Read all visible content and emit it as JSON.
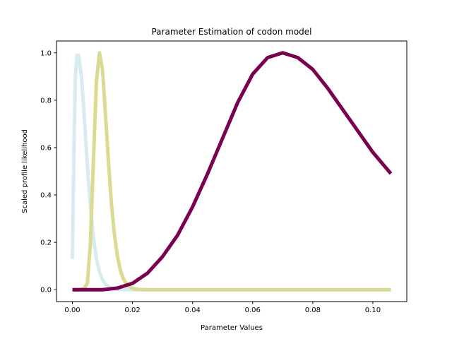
{
  "chart_data": {
    "type": "line",
    "title": "Parameter Estimation of codon model",
    "xlabel": "Parameter Values",
    "ylabel": "Scaled profile likelihood",
    "xlim": [
      -0.0053,
      0.1113
    ],
    "ylim": [
      -0.05,
      1.05
    ],
    "x_ticks": [
      0.0,
      0.02,
      0.04,
      0.06,
      0.08,
      0.1
    ],
    "x_tick_labels": [
      "0.00",
      "0.02",
      "0.04",
      "0.06",
      "0.08",
      "0.10"
    ],
    "y_ticks": [
      0.0,
      0.2,
      0.4,
      0.6,
      0.8,
      1.0
    ],
    "y_tick_labels": [
      "0.0",
      "0.2",
      "0.4",
      "0.6",
      "0.8",
      "1.0"
    ],
    "grid": false,
    "legend": "none",
    "series": [
      {
        "color": "#d6ecee",
        "x": [
          0.0,
          0.0005,
          0.001,
          0.0015,
          0.002,
          0.003,
          0.004,
          0.005,
          0.006,
          0.007,
          0.008,
          0.009,
          0.01,
          0.011,
          0.012,
          0.013,
          0.015,
          0.02,
          0.03,
          0.05,
          0.08,
          0.106
        ],
        "y": [
          0.13,
          0.6,
          0.9,
          0.99,
          0.99,
          0.9,
          0.72,
          0.52,
          0.35,
          0.22,
          0.13,
          0.075,
          0.042,
          0.023,
          0.012,
          0.006,
          0.0015,
          0.0,
          0.0,
          0.0,
          0.0,
          0.0
        ]
      },
      {
        "color": "#dadb92",
        "x": [
          0.0,
          0.002,
          0.004,
          0.005,
          0.006,
          0.007,
          0.008,
          0.009,
          0.01,
          0.011,
          0.012,
          0.013,
          0.014,
          0.015,
          0.016,
          0.017,
          0.018,
          0.019,
          0.02,
          0.022,
          0.025,
          0.03,
          0.05,
          0.08,
          0.106
        ],
        "y": [
          0.0,
          0.0,
          0.005,
          0.03,
          0.2,
          0.55,
          0.88,
          1.0,
          0.93,
          0.74,
          0.54,
          0.36,
          0.23,
          0.14,
          0.08,
          0.045,
          0.025,
          0.013,
          0.006,
          0.001,
          0.0,
          0.0,
          0.0,
          0.0,
          0.0
        ]
      },
      {
        "color": "#7a0050",
        "x": [
          0.0,
          0.01,
          0.015,
          0.02,
          0.025,
          0.03,
          0.035,
          0.04,
          0.045,
          0.05,
          0.055,
          0.06,
          0.065,
          0.07,
          0.075,
          0.08,
          0.085,
          0.09,
          0.095,
          0.1,
          0.106
        ],
        "y": [
          0.0,
          0.0,
          0.007,
          0.027,
          0.07,
          0.14,
          0.23,
          0.35,
          0.49,
          0.64,
          0.79,
          0.91,
          0.98,
          1.0,
          0.98,
          0.93,
          0.85,
          0.76,
          0.67,
          0.58,
          0.49
        ]
      }
    ]
  }
}
